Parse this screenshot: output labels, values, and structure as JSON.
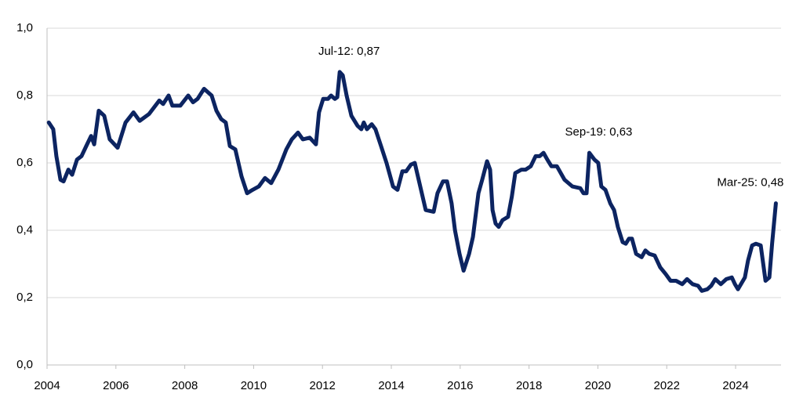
{
  "chart_data": {
    "type": "line",
    "color": "#0c2461",
    "x": [
      2004.05,
      2004.18,
      2004.27,
      2004.39,
      2004.48,
      2004.62,
      2004.73,
      2004.87,
      2005.0,
      2005.14,
      2005.28,
      2005.37,
      2005.5,
      2005.66,
      2005.82,
      2006.05,
      2006.28,
      2006.51,
      2006.69,
      2006.96,
      2007.26,
      2007.37,
      2007.53,
      2007.64,
      2007.87,
      2008.1,
      2008.24,
      2008.37,
      2008.56,
      2008.78,
      2008.92,
      2009.06,
      2009.19,
      2009.31,
      2009.47,
      2009.65,
      2009.81,
      2009.97,
      2010.15,
      2010.33,
      2010.51,
      2010.72,
      2010.95,
      2011.11,
      2011.29,
      2011.43,
      2011.63,
      2011.81,
      2011.9,
      2012.02,
      2012.16,
      2012.25,
      2012.36,
      2012.43,
      2012.5,
      2012.59,
      2012.7,
      2012.84,
      2013.02,
      2013.13,
      2013.2,
      2013.29,
      2013.43,
      2013.54,
      2013.7,
      2013.86,
      2014.05,
      2014.18,
      2014.32,
      2014.43,
      2014.57,
      2014.68,
      2014.84,
      2015.0,
      2015.23,
      2015.34,
      2015.5,
      2015.62,
      2015.75,
      2015.85,
      2015.98,
      2016.1,
      2016.26,
      2016.37,
      2016.53,
      2016.64,
      2016.78,
      2016.87,
      2016.94,
      2017.03,
      2017.12,
      2017.23,
      2017.39,
      2017.5,
      2017.6,
      2017.78,
      2017.9,
      2018.05,
      2018.19,
      2018.31,
      2018.42,
      2018.53,
      2018.65,
      2018.81,
      2019.03,
      2019.26,
      2019.49,
      2019.58,
      2019.67,
      2019.75,
      2019.9,
      2020.01,
      2020.1,
      2020.22,
      2020.36,
      2020.47,
      2020.58,
      2020.72,
      2020.81,
      2020.9,
      2020.99,
      2021.11,
      2021.27,
      2021.38,
      2021.49,
      2021.65,
      2021.81,
      2021.97,
      2022.11,
      2022.27,
      2022.45,
      2022.59,
      2022.75,
      2022.91,
      2023.02,
      2023.18,
      2023.29,
      2023.41,
      2023.57,
      2023.73,
      2023.89,
      2023.98,
      2024.07,
      2024.27,
      2024.36,
      2024.48,
      2024.59,
      2024.73,
      2024.87,
      2024.98,
      2025.06,
      2025.17
    ],
    "values": [
      0.72,
      0.7,
      0.62,
      0.55,
      0.545,
      0.58,
      0.565,
      0.61,
      0.62,
      0.65,
      0.68,
      0.655,
      0.755,
      0.74,
      0.67,
      0.645,
      0.72,
      0.75,
      0.725,
      0.745,
      0.785,
      0.775,
      0.8,
      0.77,
      0.77,
      0.8,
      0.78,
      0.79,
      0.82,
      0.8,
      0.755,
      0.73,
      0.72,
      0.65,
      0.64,
      0.56,
      0.51,
      0.52,
      0.53,
      0.555,
      0.54,
      0.58,
      0.64,
      0.67,
      0.69,
      0.67,
      0.675,
      0.655,
      0.75,
      0.79,
      0.79,
      0.8,
      0.79,
      0.795,
      0.87,
      0.86,
      0.8,
      0.74,
      0.71,
      0.7,
      0.72,
      0.7,
      0.715,
      0.7,
      0.65,
      0.6,
      0.53,
      0.52,
      0.575,
      0.575,
      0.595,
      0.6,
      0.53,
      0.46,
      0.455,
      0.51,
      0.545,
      0.545,
      0.48,
      0.4,
      0.33,
      0.28,
      0.33,
      0.38,
      0.51,
      0.55,
      0.605,
      0.58,
      0.46,
      0.42,
      0.41,
      0.43,
      0.44,
      0.5,
      0.57,
      0.58,
      0.58,
      0.59,
      0.62,
      0.62,
      0.63,
      0.61,
      0.59,
      0.59,
      0.55,
      0.53,
      0.525,
      0.51,
      0.51,
      0.63,
      0.61,
      0.6,
      0.53,
      0.52,
      0.48,
      0.46,
      0.41,
      0.365,
      0.36,
      0.375,
      0.375,
      0.33,
      0.32,
      0.34,
      0.33,
      0.325,
      0.29,
      0.27,
      0.25,
      0.25,
      0.24,
      0.255,
      0.24,
      0.235,
      0.22,
      0.225,
      0.235,
      0.255,
      0.24,
      0.255,
      0.26,
      0.24,
      0.225,
      0.26,
      0.31,
      0.355,
      0.36,
      0.355,
      0.25,
      0.26,
      0.36,
      0.48
    ],
    "xlim": [
      2004,
      2025.32
    ],
    "xticks": [
      2004,
      2006,
      2008,
      2010,
      2012,
      2014,
      2016,
      2018,
      2020,
      2022,
      2024
    ],
    "ylim": [
      0,
      1
    ],
    "yticks": [
      {
        "value": 0,
        "label": "0,0"
      },
      {
        "value": 0.2,
        "label": "0,2"
      },
      {
        "value": 0.4,
        "label": "0,4"
      },
      {
        "value": 0.6,
        "label": "0,6"
      },
      {
        "value": 0.8,
        "label": "0,8"
      },
      {
        "value": 1,
        "label": "1,0"
      }
    ],
    "grid": true,
    "annotations": [
      {
        "label": "Jul-12: 0,87",
        "x": 2012.5,
        "y": 0.87
      },
      {
        "label": "Sep-19: 0,63",
        "x": 2019.75,
        "y": 0.63
      },
      {
        "label": "Mar-25: 0,48",
        "x": 2025.17,
        "y": 0.48
      }
    ]
  }
}
